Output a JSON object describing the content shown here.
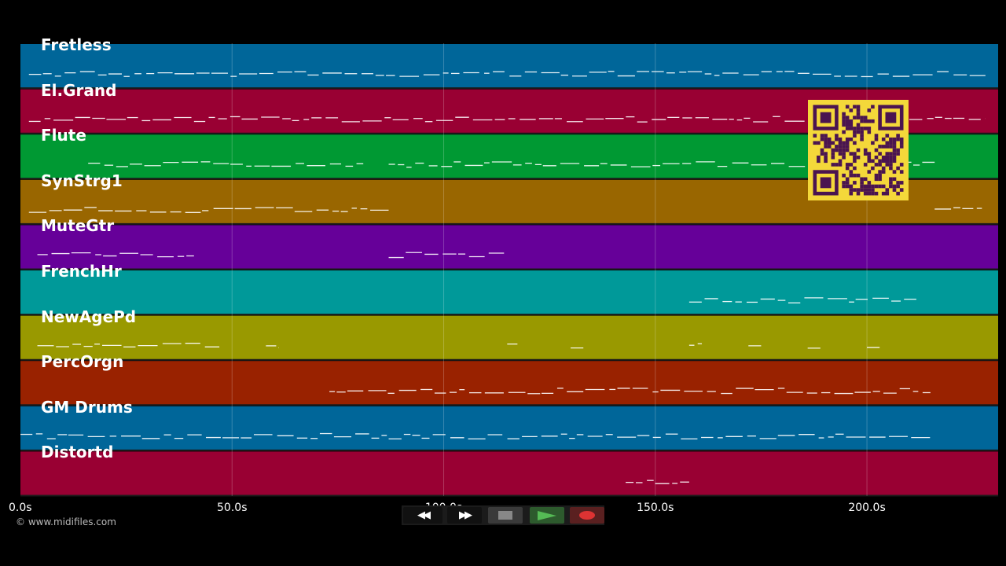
{
  "duration_seconds": 231,
  "lanes": [
    {
      "name": "Fretless",
      "color": "#006699"
    },
    {
      "name": "El.Grand",
      "color": "#990033"
    },
    {
      "name": "Flute",
      "color": "#009933"
    },
    {
      "name": "SynStrg1",
      "color": "#996600"
    },
    {
      "name": "MuteGtr",
      "color": "#660099"
    },
    {
      "name": "FrenchHr",
      "color": "#009999"
    },
    {
      "name": "NewAgePd",
      "color": "#999900"
    },
    {
      "name": "PercOrgn",
      "color": "#992200"
    },
    {
      "name": "GM Drums",
      "color": "#006699"
    },
    {
      "name": "Distortd",
      "color": "#990033"
    }
  ],
  "timeline": {
    "ticks": [
      {
        "value": 0,
        "label": "0.0s"
      },
      {
        "value": 50,
        "label": "50.0s"
      },
      {
        "value": 100,
        "label": "100.0s"
      },
      {
        "value": 150,
        "label": "150.0s"
      },
      {
        "value": 200,
        "label": "200.0s"
      }
    ]
  },
  "notes_activity": [
    {
      "lane": "Fretless",
      "segments": [
        [
          2,
          228
        ]
      ]
    },
    {
      "lane": "El.Grand",
      "segments": [
        [
          2,
          228
        ]
      ]
    },
    {
      "lane": "Flute",
      "segments": [
        [
          16,
          81
        ],
        [
          87,
          216
        ]
      ]
    },
    {
      "lane": "SynStrg1",
      "segments": [
        [
          2,
          87
        ],
        [
          216,
          228
        ]
      ]
    },
    {
      "lane": "MuteGtr",
      "segments": [
        [
          4,
          41
        ],
        [
          87,
          115
        ]
      ]
    },
    {
      "lane": "FrenchHr",
      "segments": [
        [
          158,
          212
        ]
      ]
    },
    {
      "lane": "NewAgePd",
      "segments": [
        [
          4,
          47
        ],
        [
          58,
          61
        ],
        [
          115,
          118
        ],
        [
          130,
          133
        ],
        [
          158,
          161
        ],
        [
          172,
          175
        ],
        [
          186,
          189
        ],
        [
          200,
          203
        ]
      ]
    },
    {
      "lane": "PercOrgn",
      "segments": [
        [
          73,
          215
        ]
      ]
    },
    {
      "lane": "GM Drums",
      "segments": [
        [
          0,
          215
        ]
      ]
    },
    {
      "lane": "Distortd",
      "segments": [
        [
          143,
          158
        ]
      ]
    }
  ],
  "copyright": "© www.midifiles.com",
  "transport": {
    "rewind": "◀◀",
    "forward": "▶▶",
    "colors": {
      "stop": "#888888",
      "play": "#55bb55",
      "record": "#dd3333",
      "play_bg": "#2d5a2d",
      "record_bg": "#5a2020",
      "stop_bg": "#3a3a3a"
    }
  },
  "qr_code": "qr-code"
}
